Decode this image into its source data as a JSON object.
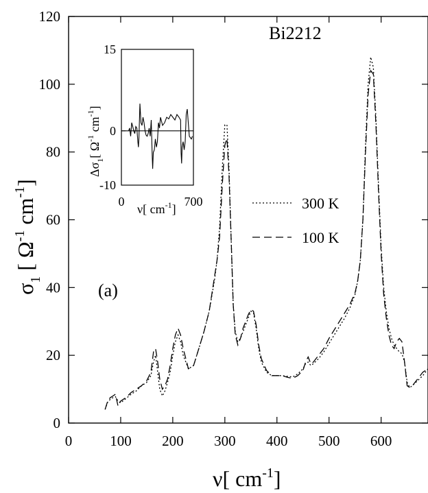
{
  "chart_data": [
    {
      "type": "line",
      "title": "",
      "annotation_sample": "Bi2212",
      "annotation_panel": "(a)",
      "xlabel": {
        "symbol": "ν",
        "unit": "[ cm",
        "exp": "-1",
        "close": "]"
      },
      "ylabel": {
        "symbol": "σ",
        "sub": "1",
        "unit": " [ Ω",
        "exp1": "-1",
        "unit2": " cm",
        "exp2": "-1",
        "close": "]"
      },
      "xlim": [
        0,
        690
      ],
      "ylim": [
        0,
        120
      ],
      "xticks": [
        0,
        100,
        200,
        300,
        400,
        500,
        600
      ],
      "yticks": [
        0,
        20,
        40,
        60,
        80,
        100,
        120
      ],
      "grid": false,
      "legend_position": "center-right",
      "series": [
        {
          "name": "300 K",
          "style": "dotted",
          "x": [
            70,
            75,
            80,
            85,
            90,
            95,
            100,
            110,
            120,
            130,
            140,
            150,
            158,
            163,
            167,
            171,
            175,
            180,
            185,
            190,
            195,
            200,
            205,
            210,
            215,
            220,
            225,
            230,
            240,
            250,
            260,
            270,
            280,
            285,
            290,
            295,
            300,
            304,
            308,
            312,
            316,
            320,
            325,
            330,
            335,
            340,
            345,
            350,
            355,
            360,
            365,
            370,
            380,
            390,
            400,
            410,
            420,
            430,
            440,
            450,
            455,
            460,
            465,
            470,
            480,
            490,
            500,
            510,
            520,
            530,
            540,
            550,
            555,
            560,
            565,
            570,
            575,
            580,
            585,
            590,
            595,
            600,
            605,
            610,
            615,
            620,
            625,
            630,
            635,
            640,
            645,
            650,
            655,
            660,
            670,
            680,
            690
          ],
          "y": [
            4,
            6.2,
            7,
            7.5,
            7.8,
            6.5,
            6,
            7.2,
            8.5,
            9.5,
            11,
            12,
            14,
            18,
            20,
            15,
            10,
            8,
            9.5,
            12,
            15,
            20,
            24,
            26,
            24,
            20,
            18,
            16,
            17,
            22,
            27,
            33,
            42,
            48,
            58,
            75,
            88,
            88,
            75,
            55,
            35,
            27,
            24,
            25,
            27,
            29,
            31,
            33,
            32.5,
            28,
            22,
            18,
            15,
            14,
            14,
            14,
            13.8,
            13.6,
            14.5,
            16,
            17.5,
            18,
            17,
            17.5,
            19,
            21,
            23.5,
            26,
            28.5,
            31,
            34,
            38,
            42,
            48,
            60,
            82,
            100,
            108,
            105,
            90,
            70,
            52,
            40,
            33,
            28,
            25,
            23,
            22,
            21,
            20.5,
            18,
            12,
            10.5,
            11,
            12.5,
            14,
            16
          ]
        },
        {
          "name": "100 K",
          "style": "dashed",
          "x": [
            70,
            75,
            80,
            85,
            90,
            95,
            100,
            110,
            120,
            130,
            140,
            150,
            158,
            163,
            167,
            171,
            175,
            180,
            185,
            190,
            195,
            200,
            205,
            210,
            215,
            220,
            225,
            230,
            240,
            250,
            260,
            270,
            280,
            285,
            290,
            295,
            300,
            304,
            308,
            312,
            316,
            320,
            325,
            330,
            335,
            340,
            345,
            350,
            355,
            360,
            365,
            370,
            380,
            390,
            400,
            410,
            420,
            430,
            440,
            450,
            455,
            460,
            465,
            470,
            480,
            490,
            500,
            510,
            520,
            530,
            540,
            550,
            555,
            560,
            565,
            570,
            575,
            580,
            585,
            590,
            595,
            600,
            605,
            610,
            615,
            620,
            625,
            630,
            635,
            640,
            645,
            650,
            655,
            660,
            670,
            680,
            690
          ],
          "y": [
            4,
            6.5,
            7.5,
            8,
            8.5,
            5,
            6.5,
            7.5,
            9,
            10,
            11,
            12.5,
            15,
            21,
            22,
            18,
            13,
            10,
            11,
            13,
            17,
            22,
            26,
            28,
            26,
            22,
            19,
            16,
            17,
            22,
            27,
            33,
            43,
            48,
            55,
            70,
            82,
            84,
            73,
            55,
            35,
            26,
            23,
            25,
            28,
            30,
            32,
            33.5,
            33,
            29,
            23,
            19,
            15.5,
            14,
            14,
            14,
            13.5,
            13.2,
            14,
            15.5,
            18,
            19.5,
            17.5,
            18,
            20,
            22,
            25,
            27.5,
            30,
            32.5,
            35,
            38.5,
            42,
            48,
            60,
            80,
            97,
            104,
            103,
            88,
            68,
            50,
            38,
            31,
            26,
            23,
            22,
            24,
            25,
            24,
            18,
            11,
            10.5,
            11,
            13,
            15,
            16
          ]
        }
      ]
    },
    {
      "type": "line",
      "title": "",
      "xlabel": {
        "symbol": "ν",
        "unit": "[ cm",
        "exp": "-1",
        "close": "]"
      },
      "ylabel": {
        "prefix": "Δσ",
        "sub": "1",
        "unit": "[ Ω",
        "exp1": "-1",
        "unit2": " cm",
        "exp2": "-1",
        "close": "]"
      },
      "xlim": [
        0,
        700
      ],
      "ylim": [
        -10,
        15
      ],
      "xticks": [
        0,
        700
      ],
      "yticks": [
        -10,
        0,
        15
      ],
      "grid": false,
      "series": [
        {
          "x": [
            70,
            80,
            90,
            100,
            110,
            120,
            130,
            140,
            150,
            160,
            165,
            170,
            180,
            190,
            200,
            210,
            220,
            230,
            240,
            250,
            260,
            270,
            280,
            290,
            300,
            304,
            310,
            320,
            330,
            340,
            350,
            360,
            370,
            380,
            400,
            420,
            440,
            460,
            480,
            500,
            520,
            540,
            560,
            575,
            580,
            585,
            590,
            600,
            610,
            620,
            630,
            640,
            650,
            660,
            680,
            690
          ],
          "y": [
            0,
            0.5,
            -1,
            1.5,
            0.8,
            0,
            -0.5,
            0.8,
            0.5,
            -2,
            -3,
            -1.5,
            5,
            1.5,
            1,
            2.5,
            1.5,
            0,
            -0.8,
            -1,
            -0.5,
            0.5,
            -1,
            2,
            -5,
            -7,
            -4,
            -3.5,
            -1.5,
            -3,
            -2,
            1.5,
            0.5,
            2.5,
            1,
            1.5,
            2.5,
            2.2,
            3,
            2.5,
            2,
            3,
            2.5,
            2,
            -4,
            -6,
            -3,
            -2,
            -3.5,
            -2,
            3,
            4,
            1.5,
            -1,
            -1.5,
            -1
          ]
        }
      ]
    }
  ]
}
